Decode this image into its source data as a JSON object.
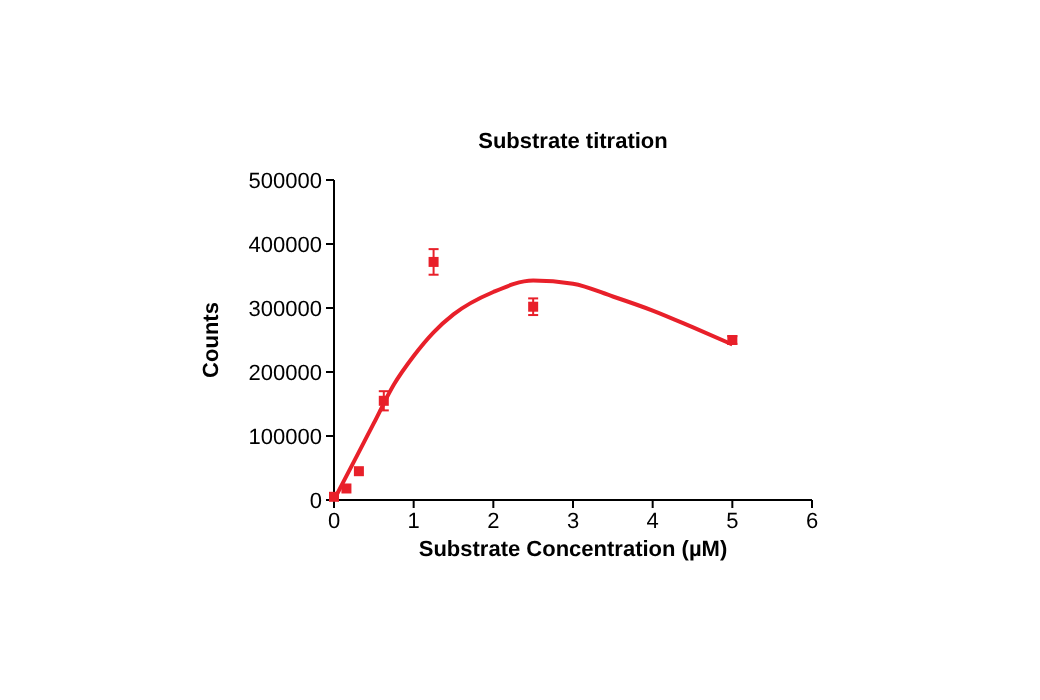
{
  "chart_data": {
    "type": "scatter",
    "title": "Substrate titration",
    "xlabel": "Substrate Concentration (µM)",
    "ylabel": "Counts",
    "xlim": [
      0,
      6
    ],
    "xticks": [
      0,
      1,
      2,
      3,
      4,
      5,
      6
    ],
    "ylim": [
      0,
      500000
    ],
    "yticks": [
      0,
      100000,
      200000,
      300000,
      400000,
      500000
    ],
    "grid": false,
    "series": [
      {
        "color": "#e8202a",
        "marker": "square",
        "x": [
          0,
          0.156,
          0.3125,
          0.625,
          1.25,
          2.5,
          5
        ],
        "values": [
          5000,
          18000,
          45000,
          155000,
          372000,
          302000,
          250000
        ],
        "errors": [
          null,
          null,
          null,
          15000,
          20000,
          13000,
          6000
        ]
      },
      {
        "type": "line",
        "color": "#e8202a",
        "marker": "none",
        "line_style": "solid",
        "x": [
          0,
          0.25,
          0.5,
          0.75,
          1,
          1.25,
          1.5,
          2,
          2.5,
          3,
          3.5,
          4,
          4.5,
          5
        ],
        "values": [
          0,
          60000,
          120000,
          180000,
          225000,
          262000,
          290000,
          325000,
          343000,
          338000,
          318000,
          296000,
          270000,
          243000
        ]
      }
    ]
  }
}
